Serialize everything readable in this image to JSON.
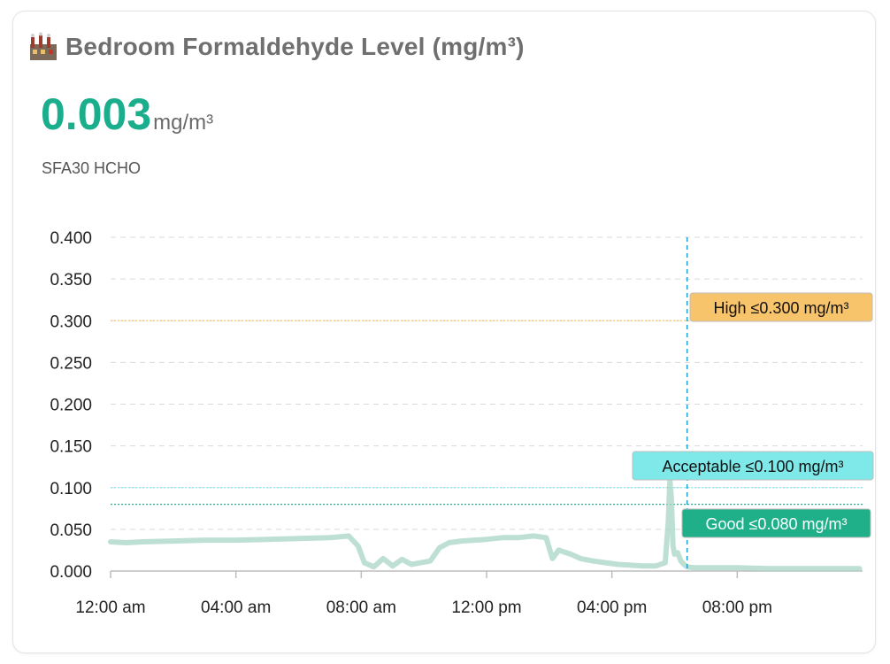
{
  "card": {
    "title": "Bedroom Formaldehyde Level (mg/m³)",
    "icon": "factory-icon",
    "state_value": "0.003",
    "state_unit": "mg/m³",
    "entity_name": "SFA30 HCHO"
  },
  "colors": {
    "accent": "#1aae8c",
    "line": "#a8d5c6",
    "high": "#f7c46c",
    "acceptable": "#7fe9ea",
    "good": "#1fb08a",
    "now_marker": "#1f9fd0"
  },
  "chart_data": {
    "type": "line",
    "title": "",
    "xlabel": "",
    "ylabel": "",
    "x_ticks": [
      "12:00 am",
      "04:00 am",
      "08:00 am",
      "12:00 pm",
      "04:00 pm",
      "08:00 pm"
    ],
    "y_ticks": [
      "0.400",
      "0.350",
      "0.300",
      "0.250",
      "0.200",
      "0.150",
      "0.100",
      "0.050",
      "0.000"
    ],
    "ylim": [
      0,
      0.4
    ],
    "xlim_hours": [
      0,
      24
    ],
    "grid": true,
    "series": [
      {
        "x_hours": [
          0,
          0.5,
          1,
          2,
          3,
          4,
          5,
          6,
          7,
          7.6,
          7.9,
          8.1,
          8.4,
          8.7,
          9.0,
          9.3,
          9.6,
          9.9,
          10.2,
          10.5,
          10.8,
          11.2,
          11.6,
          12,
          12.5,
          13,
          13.5,
          13.9,
          14.1,
          14.3,
          14.7,
          15.0,
          15.4,
          15.8,
          16.2,
          16.6,
          17.0,
          17.4,
          17.7,
          17.8,
          17.85,
          17.9,
          17.95,
          18.0,
          18.1,
          18.2,
          18.3,
          18.4,
          18.6,
          19,
          20,
          21,
          22,
          23,
          23.9
        ],
        "values": [
          0.035,
          0.034,
          0.035,
          0.036,
          0.037,
          0.037,
          0.038,
          0.039,
          0.04,
          0.042,
          0.03,
          0.01,
          0.005,
          0.015,
          0.006,
          0.014,
          0.008,
          0.01,
          0.012,
          0.028,
          0.034,
          0.036,
          0.037,
          0.038,
          0.04,
          0.04,
          0.042,
          0.04,
          0.015,
          0.025,
          0.02,
          0.015,
          0.012,
          0.01,
          0.008,
          0.007,
          0.006,
          0.006,
          0.01,
          0.06,
          0.108,
          0.085,
          0.03,
          0.02,
          0.022,
          0.012,
          0.008,
          0.005,
          0.004,
          0.004,
          0.004,
          0.003,
          0.003,
          0.003,
          0.003
        ]
      }
    ],
    "now_marker_hours": 18.4,
    "thresholds": [
      {
        "label": "High ≤0.300 mg/m³",
        "value": 0.3,
        "color": "#f7c46c"
      },
      {
        "label": "Acceptable ≤0.100 mg/m³",
        "value": 0.1,
        "color": "#7fe9ea"
      },
      {
        "label": "Good ≤0.080 mg/m³",
        "value": 0.08,
        "color": "#1fb08a"
      }
    ]
  }
}
